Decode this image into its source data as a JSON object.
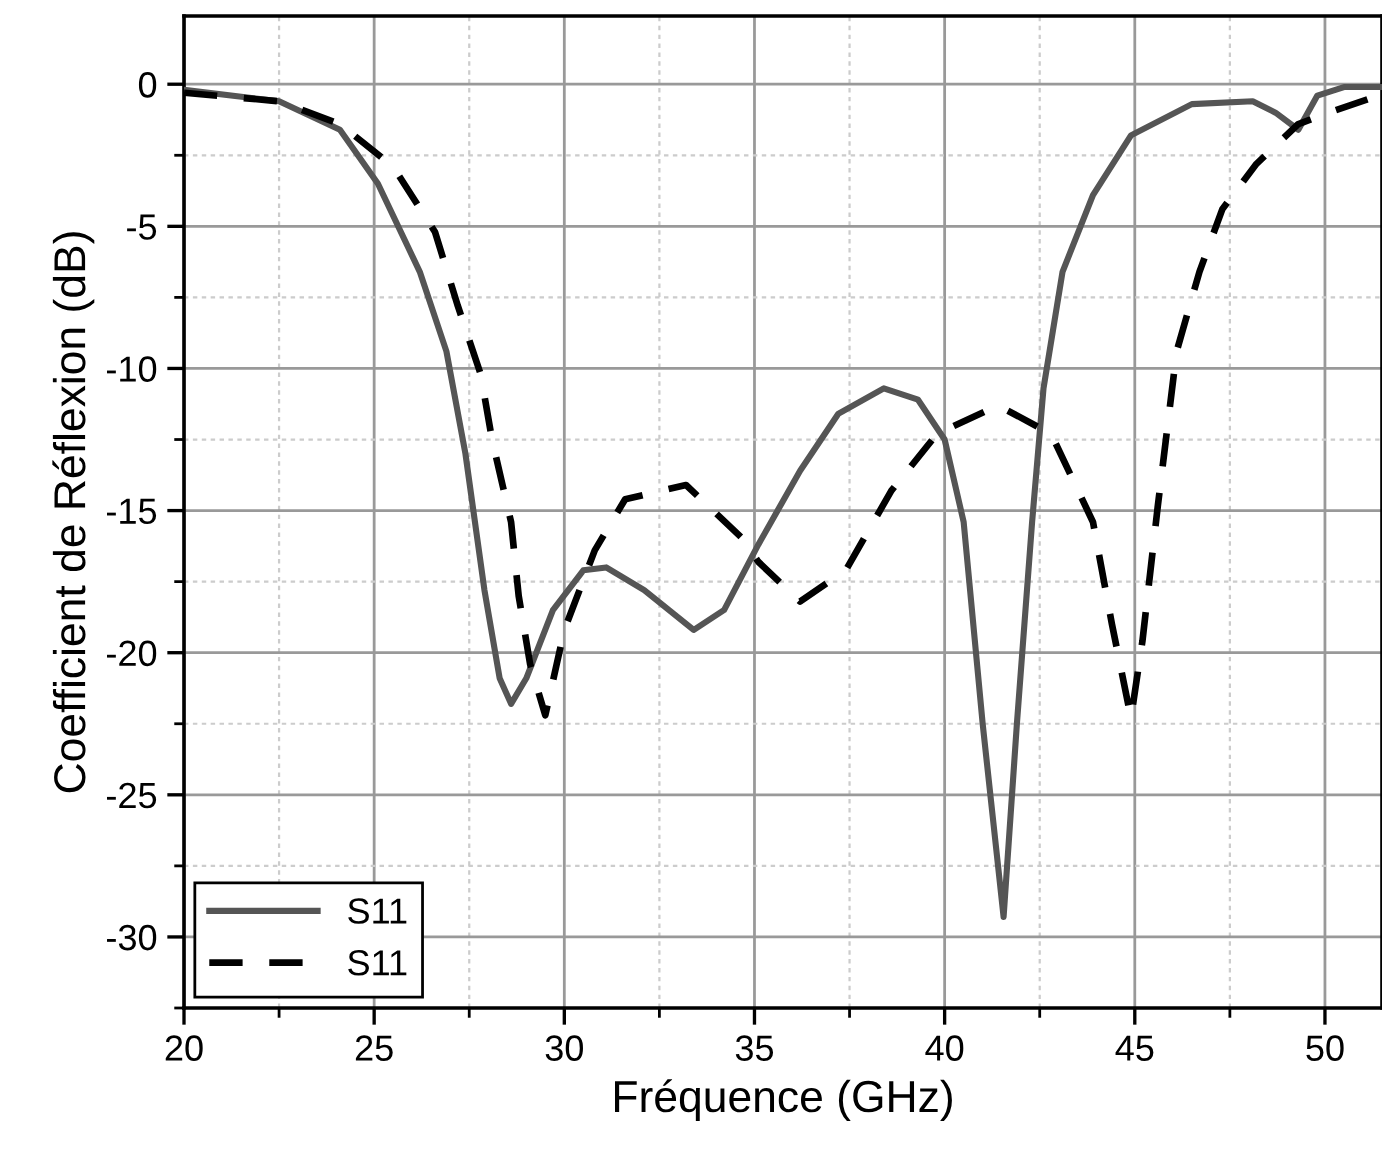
{
  "chart_data": {
    "type": "line",
    "xlabel": "Fréquence (GHz)",
    "ylabel": "Coefficient de Réflexion (dB)",
    "xlim": [
      20,
      51.5
    ],
    "ylim": [
      -32.5,
      2.4
    ],
    "xticks": [
      20,
      {
        "value": 22.5,
        "label": null
      },
      25,
      {
        "value": 27.5,
        "label": null
      },
      30,
      {
        "value": 32.5,
        "label": null
      },
      35,
      {
        "value": 37.5,
        "label": null
      },
      40,
      {
        "value": 42.5,
        "label": null
      },
      45,
      {
        "value": 47.5,
        "label": null
      },
      50
    ],
    "yticks": [
      {
        "value": -32.5,
        "label": null
      },
      -30,
      {
        "value": -27.5,
        "label": null
      },
      -25,
      {
        "value": -22.5,
        "label": null
      },
      -20,
      {
        "value": -17.5,
        "label": null
      },
      -15,
      {
        "value": -12.5,
        "label": null
      },
      -10,
      {
        "value": -7.5,
        "label": null
      },
      -5,
      {
        "value": -2.5,
        "label": null
      },
      0
    ],
    "grid": true,
    "legend": "bottom left",
    "series": [
      {
        "name": "S11",
        "color": "#555555",
        "line_style": "solid",
        "x": [
          20,
          22.5,
          24.1,
          25.1,
          26.2,
          26.9,
          27.4,
          27.9,
          28.3,
          28.6,
          29.0,
          29.7,
          30.5,
          31.1,
          32.1,
          33.4,
          34.2,
          35.1,
          36.2,
          37.2,
          38.4,
          39.3,
          40.0,
          40.5,
          41.0,
          41.55,
          41.9,
          42.3,
          42.6,
          43.1,
          43.9,
          44.9,
          46.5,
          48.1,
          48.7,
          49.3,
          49.8,
          50.5,
          51.5
        ],
        "values": [
          -0.2,
          -0.6,
          -1.6,
          -3.5,
          -6.6,
          -9.4,
          -13,
          -17.8,
          -20.9,
          -21.8,
          -20.9,
          -18.5,
          -17.1,
          -17.0,
          -17.8,
          -19.2,
          -18.5,
          -16.2,
          -13.6,
          -11.6,
          -10.7,
          -11.1,
          -12.5,
          -15.4,
          -22.5,
          -29.3,
          -22.5,
          -15.4,
          -10.7,
          -6.6,
          -3.9,
          -1.8,
          -0.7,
          -0.6,
          -1.0,
          -1.6,
          -0.4,
          -0.1,
          -0.1
        ]
      },
      {
        "name": "S11",
        "color": "#000000",
        "line_style": "dashed",
        "x": [
          20,
          22.5,
          24.1,
          25.5,
          26.6,
          27.2,
          27.8,
          28.1,
          28.6,
          28.8,
          29.1,
          29.5,
          30.0,
          30.8,
          31.6,
          33.2,
          34.7,
          35.1,
          36.2,
          37.4,
          38.6,
          39.8,
          41.4,
          42.8,
          43.9,
          44.4,
          44.9,
          45.2,
          45.6,
          46.1,
          46.7,
          47.3,
          48.2,
          49.3,
          50.1,
          51.4
        ],
        "values": [
          -0.3,
          -0.6,
          -1.4,
          -2.9,
          -5.2,
          -7.8,
          -10.2,
          -12.5,
          -15.4,
          -18.0,
          -20.4,
          -22.2,
          -19.2,
          -16.4,
          -14.6,
          -14.1,
          -16.0,
          -16.8,
          -18.2,
          -17.1,
          -14.3,
          -12.3,
          -11.3,
          -12.3,
          -15.4,
          -19.0,
          -22.3,
          -19.6,
          -14.9,
          -9.4,
          -6.6,
          -4.4,
          -2.8,
          -1.4,
          -1.0,
          -0.4
        ]
      }
    ]
  }
}
